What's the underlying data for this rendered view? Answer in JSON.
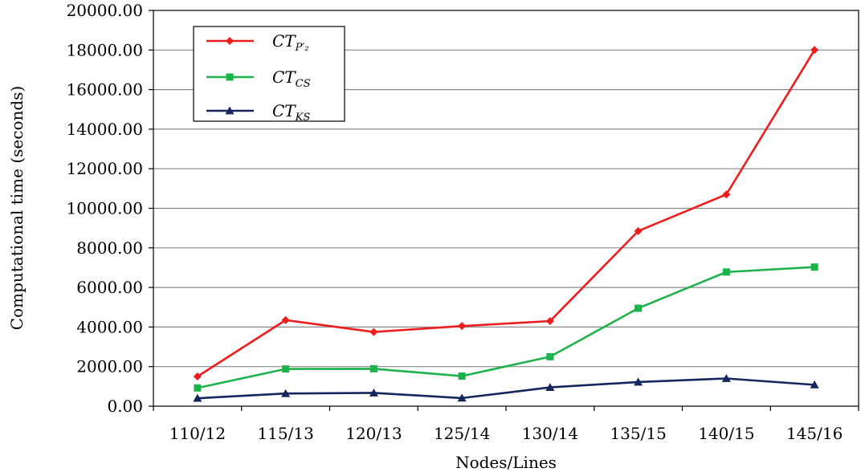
{
  "chart_data": {
    "type": "line",
    "xlabel": "Nodes/Lines",
    "ylabel": "Computational time  (seconds)",
    "categories": [
      "110/12",
      "115/13",
      "120/13",
      "125/14",
      "130/14",
      "135/15",
      "140/15",
      "145/16"
    ],
    "ylim": [
      0,
      20000
    ],
    "yticks": [
      "0.00",
      "2000.00",
      "4000.00",
      "6000.00",
      "8000.00",
      "10000.00",
      "12000.00",
      "14000.00",
      "16000.00",
      "18000.00",
      "20000.00"
    ],
    "grid": "horizontal",
    "legend_position": "top-left",
    "series": [
      {
        "name": "CT_{P'_2}",
        "label_main": "CT",
        "label_sub": "P′₂",
        "color": "#ee1c1c",
        "marker": "diamond",
        "values": [
          1500,
          4350,
          3750,
          4050,
          4300,
          8850,
          10700,
          18000
        ]
      },
      {
        "name": "CT_{CS}",
        "label_main": "CT",
        "label_sub": "CS",
        "color": "#1db34b",
        "marker": "square",
        "values": [
          920,
          1880,
          1890,
          1520,
          2500,
          4950,
          6780,
          7030
        ]
      },
      {
        "name": "CT_{KS}",
        "label_main": "CT",
        "label_sub": "KS",
        "color": "#15265e",
        "marker": "triangle",
        "values": [
          400,
          640,
          670,
          410,
          950,
          1220,
          1400,
          1080
        ]
      }
    ]
  }
}
